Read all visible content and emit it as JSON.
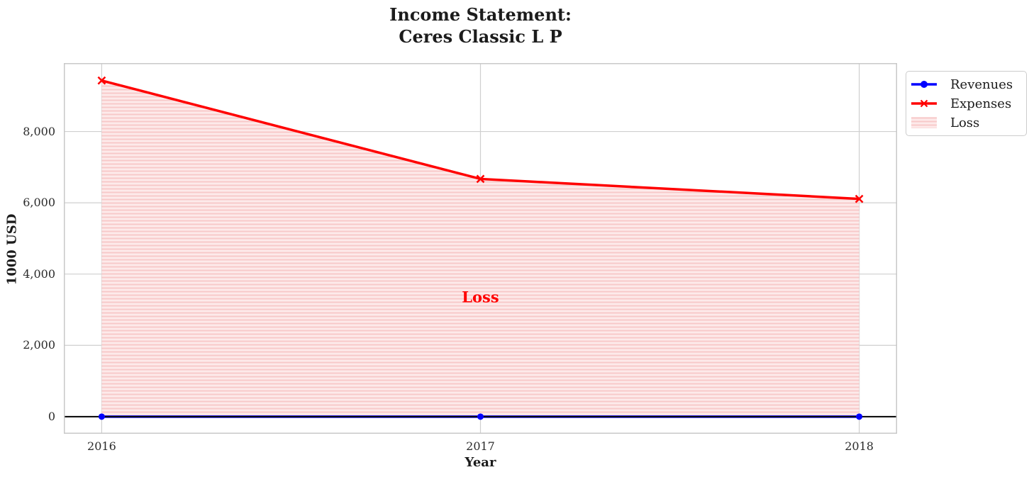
{
  "chart_data": {
    "type": "line",
    "title": "Income Statement:\nCeres Classic L P",
    "title_lines": [
      "Income Statement:",
      "Ceres Classic L P"
    ],
    "xlabel": "Year",
    "ylabel": "1000 USD",
    "x": [
      2016,
      2017,
      2018
    ],
    "series": [
      {
        "name": "Revenues",
        "values": [
          0,
          0,
          0
        ],
        "color": "#0000ff",
        "marker": "circle",
        "line_width": 3.5
      },
      {
        "name": "Expenses",
        "values": [
          9430,
          6670,
          6110
        ],
        "color": "#ff0000",
        "marker": "x",
        "line_width": 3.5
      }
    ],
    "loss_area": {
      "label": "Loss",
      "between": [
        "Revenues",
        "Expenses"
      ],
      "fill_color": "#fdeaea",
      "hatch_color": "#f8c9c9",
      "hatch_style": "horizontal-lines"
    },
    "annotation": {
      "text": "Loss",
      "x": 2017,
      "y": 3350,
      "color": "#ff0000"
    },
    "xlim": [
      2015.9,
      2018.1
    ],
    "ylim": [
      -480,
      9920
    ],
    "yticks": {
      "values": [
        0,
        2000,
        4000,
        6000,
        8000
      ],
      "labels": [
        "0",
        "2,000",
        "4,000",
        "6,000",
        "8,000"
      ]
    },
    "xticks": {
      "values": [
        2016,
        2017,
        2018
      ],
      "labels": [
        "2016",
        "2017",
        "2018"
      ]
    },
    "grid": true,
    "grid_color": "#cfcfcf",
    "spine_color": "#c8c8c8",
    "zero_line_color": "#000000",
    "legend": {
      "position": "outside-top-right",
      "items": [
        {
          "label": "Revenues",
          "swatch": "line-circle",
          "color": "#0000ff"
        },
        {
          "label": "Expenses",
          "swatch": "line-x",
          "color": "#ff0000"
        },
        {
          "label": "Loss",
          "swatch": "hatch-patch",
          "color": "#f8c9c9"
        }
      ]
    }
  }
}
